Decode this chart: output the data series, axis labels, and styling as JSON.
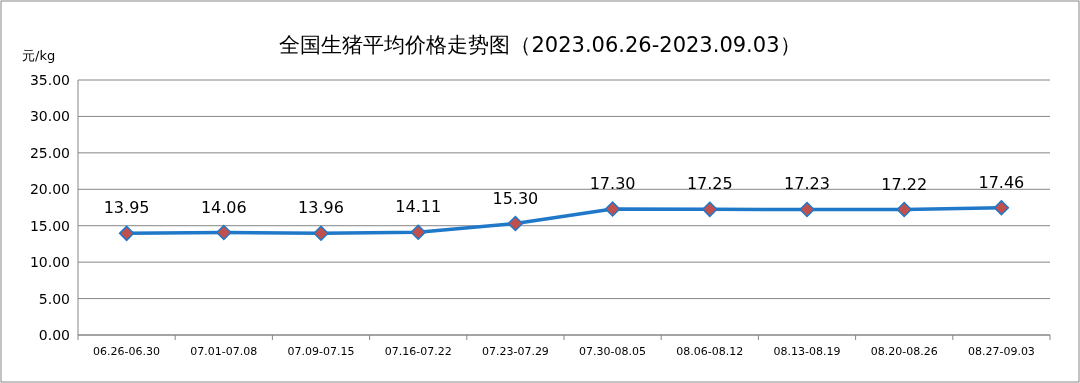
{
  "chart_data": {
    "type": "line",
    "title": "全国生猪平均价格走势图（2023.06.26-2023.09.03）",
    "ylabel": "元/kg",
    "categories": [
      "06.26-06.30",
      "07.01-07.08",
      "07.09-07.15",
      "07.16-07.22",
      "07.23-07.29",
      "07.30-08.05",
      "08.06-08.12",
      "08.13-08.19",
      "08.20-08.26",
      "08.27-09.03"
    ],
    "series": [
      {
        "color": "#1f78c8",
        "colors": [
          "#c0504d",
          "#c0504d",
          "#c0504d",
          "#c0504d",
          "#c0504d",
          "#c0504d",
          "#c0504d",
          "#c0504d",
          "#c0504d",
          "#c0504d"
        ],
        "values": [
          13.95,
          14.06,
          13.96,
          14.11,
          15.3,
          17.3,
          17.25,
          17.23,
          17.22,
          17.46
        ],
        "value_labels": [
          "13.95",
          "14.06",
          "13.96",
          "14.11",
          "15.30",
          "17.30",
          "17.25",
          "17.23",
          "17.22",
          "17.46"
        ]
      }
    ],
    "ylim": [
      0,
      35
    ],
    "yticks": [
      {
        "value": 0,
        "label": "0.00"
      },
      {
        "value": 5,
        "label": "5.00"
      },
      {
        "value": 10,
        "label": "10.00"
      },
      {
        "value": 15,
        "label": "15.00"
      },
      {
        "value": 20,
        "label": "20.00"
      },
      {
        "value": 25,
        "label": "25.00"
      },
      {
        "value": 30,
        "label": "30.00"
      },
      {
        "value": 35,
        "label": "35.00"
      }
    ],
    "grid": "y",
    "marker": "diamond",
    "line_style": "solid"
  }
}
